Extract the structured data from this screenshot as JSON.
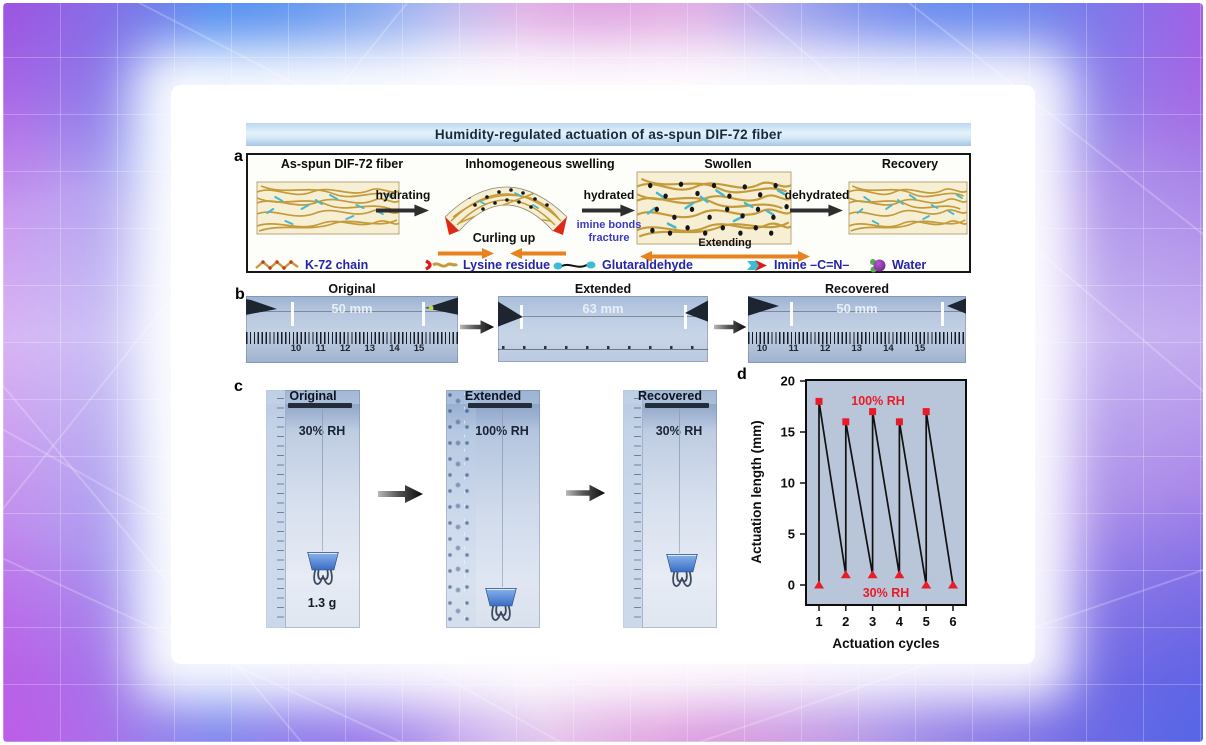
{
  "figure": {
    "title": "Humidity-regulated actuation of as-spun DIF-72 fiber"
  },
  "panel_a": {
    "label": "a",
    "stages": [
      {
        "name": "As-spun DIF-72 fiber",
        "icon": "fiber-mesh-schematic"
      },
      {
        "name": "Inhomogeneous swelling",
        "icon": "curved-fiber-schematic"
      },
      {
        "name": "Swollen",
        "icon": "swollen-fiber-schematic"
      },
      {
        "name": "Recovery",
        "icon": "recovered-fiber-schematic"
      }
    ],
    "transitions": [
      {
        "label": "hydrating"
      },
      {
        "label": "hydrated"
      },
      {
        "label": "dehydrated"
      }
    ],
    "annotations": {
      "curling_up": "Curling up",
      "imine_line1": "imine bonds",
      "imine_line2": "fracture",
      "extending": "Extending"
    },
    "legend": [
      {
        "label": "K-72 chain",
        "icon": "k72-chain-icon"
      },
      {
        "label": "Lysine residue",
        "icon": "lysine-residue-icon"
      },
      {
        "label": "Glutaraldehyde",
        "icon": "glutaraldehyde-icon"
      },
      {
        "label": "Imine –C=N–",
        "icon": "imine-bond-icon"
      },
      {
        "label": "Water",
        "icon": "water-icon"
      }
    ]
  },
  "panel_b": {
    "label": "b",
    "photos": [
      {
        "title": "Original",
        "measurement": "50 mm",
        "ruler": [
          "10",
          "11",
          "12",
          "13",
          "14",
          "15"
        ]
      },
      {
        "title": "Extended",
        "measurement": "63 mm"
      },
      {
        "title": "Recovered",
        "measurement": "50 mm",
        "ruler": [
          "10",
          "11",
          "12",
          "13",
          "14",
          "15"
        ]
      }
    ]
  },
  "panel_c": {
    "label": "c",
    "photos": [
      {
        "title": "Original",
        "humidity": "30% RH",
        "weight": "1.3 g"
      },
      {
        "title": "Extended",
        "humidity": "100% RH"
      },
      {
        "title": "Recovered",
        "humidity": "30% RH"
      }
    ]
  },
  "panel_d": {
    "label": "d",
    "chart_data": {
      "type": "line",
      "xlabel": "Actuation cycles",
      "ylabel": "Actuation length (mm)",
      "xticks": [
        1,
        2,
        3,
        4,
        5,
        6
      ],
      "yticks": [
        0,
        5,
        10,
        15,
        20
      ],
      "xlim": [
        0.5,
        6.6
      ],
      "ylim": [
        -2,
        20
      ],
      "grid": false,
      "plot_bg": "#b9c6d9",
      "line_color": "#111111",
      "path_points": [
        [
          1,
          0
        ],
        [
          1,
          18
        ],
        [
          2,
          1
        ],
        [
          2,
          16
        ],
        [
          3,
          1
        ],
        [
          3,
          17
        ],
        [
          4,
          1
        ],
        [
          4,
          16
        ],
        [
          5,
          0
        ],
        [
          5,
          17
        ],
        [
          6,
          0
        ]
      ],
      "series": [
        {
          "name": "100% RH",
          "marker": "square",
          "color": "#e81c28",
          "points": [
            [
              1,
              18
            ],
            [
              2,
              16
            ],
            [
              3,
              17
            ],
            [
              4,
              16
            ],
            [
              5,
              17
            ]
          ]
        },
        {
          "name": "30% RH",
          "marker": "triangle",
          "color": "#e81c28",
          "points": [
            [
              1,
              0
            ],
            [
              2,
              1
            ],
            [
              3,
              1
            ],
            [
              4,
              1
            ],
            [
              5,
              0
            ],
            [
              6,
              0
            ]
          ]
        }
      ],
      "annotations": [
        {
          "text": "100% RH",
          "color": "#e81c28",
          "position": "top-center"
        },
        {
          "text": "30% RH",
          "color": "#e81c28",
          "position": "bottom-center"
        }
      ]
    }
  },
  "colors": {
    "legend_text": "#2525a8",
    "imine_note": "#3a3ac0",
    "actuation_orange": "#e8821e",
    "chart_red": "#e81c28",
    "title_bar_text": "#15293f"
  }
}
